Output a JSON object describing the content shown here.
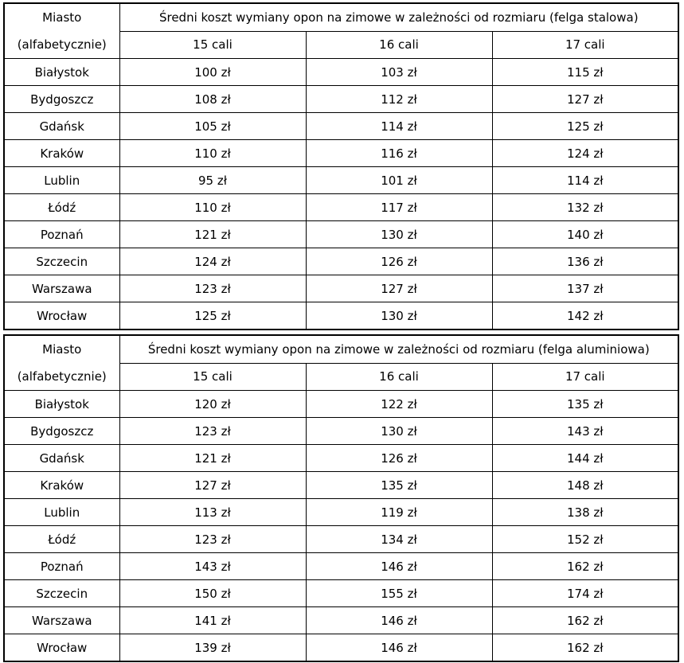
{
  "tables": [
    {
      "city_header_line1": "Miasto",
      "city_header_line2": "(alfabetycznie)",
      "title": "Średni koszt wymiany opon na zimowe w zależności od rozmiaru (felga stalowa)",
      "columns": [
        "15 cali",
        "16 cali",
        "17 cali"
      ],
      "rows": [
        {
          "city": "Białystok",
          "values": [
            "100 zł",
            "103 zł",
            "115 zł"
          ]
        },
        {
          "city": "Bydgoszcz",
          "values": [
            "108 zł",
            "112 zł",
            "127 zł"
          ]
        },
        {
          "city": "Gdańsk",
          "values": [
            "105 zł",
            "114 zł",
            "125 zł"
          ]
        },
        {
          "city": "Kraków",
          "values": [
            "110 zł",
            "116 zł",
            "124 zł"
          ]
        },
        {
          "city": "Lublin",
          "values": [
            "95 zł",
            "101 zł",
            "114 zł"
          ]
        },
        {
          "city": "Łódź",
          "values": [
            "110 zł",
            "117 zł",
            "132 zł"
          ]
        },
        {
          "city": "Poznań",
          "values": [
            "121 zł",
            "130 zł",
            "140 zł"
          ]
        },
        {
          "city": "Szczecin",
          "values": [
            "124 zł",
            "126 zł",
            "136 zł"
          ]
        },
        {
          "city": "Warszawa",
          "values": [
            "123 zł",
            "127 zł",
            "137 zł"
          ]
        },
        {
          "city": "Wrocław",
          "values": [
            "125 zł",
            "130 zł",
            "142 zł"
          ]
        }
      ]
    },
    {
      "city_header_line1": "Miasto",
      "city_header_line2": "(alfabetycznie)",
      "title": "Średni koszt wymiany opon na zimowe w zależności od rozmiaru (felga aluminiowa)",
      "columns": [
        "15 cali",
        "16 cali",
        "17 cali"
      ],
      "rows": [
        {
          "city": "Białystok",
          "values": [
            "120 zł",
            "122 zł",
            "135 zł"
          ]
        },
        {
          "city": "Bydgoszcz",
          "values": [
            "123 zł",
            "130 zł",
            "143 zł"
          ]
        },
        {
          "city": "Gdańsk",
          "values": [
            "121 zł",
            "126 zł",
            "144 zł"
          ]
        },
        {
          "city": "Kraków",
          "values": [
            "127 zł",
            "135 zł",
            "148 zł"
          ]
        },
        {
          "city": "Lublin",
          "values": [
            "113 zł",
            "119 zł",
            "138 zł"
          ]
        },
        {
          "city": "Łódź",
          "values": [
            "123 zł",
            "134 zł",
            "152 zł"
          ]
        },
        {
          "city": "Poznań",
          "values": [
            "143 zł",
            "146 zł",
            "162 zł"
          ]
        },
        {
          "city": "Szczecin",
          "values": [
            "150 zł",
            "155 zł",
            "174 zł"
          ]
        },
        {
          "city": "Warszawa",
          "values": [
            "141 zł",
            "146 zł",
            "162 zł"
          ]
        },
        {
          "city": "Wrocław",
          "values": [
            "139 zł",
            "146 zł",
            "162 zł"
          ]
        }
      ]
    }
  ]
}
